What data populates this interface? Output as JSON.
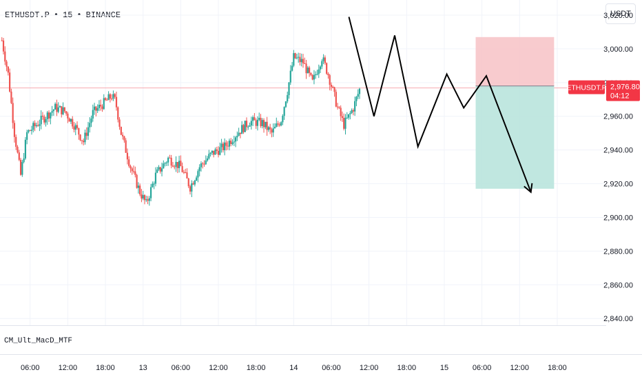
{
  "header": {
    "symbol": "ETHUSDT.P",
    "interval": "15",
    "exchange": "BINANCE",
    "separator": "•",
    "currency_button": "USDT"
  },
  "indicator": {
    "name": "CM_Ult_MacD_MTF"
  },
  "price_tag": {
    "symbol": "ETHUSDT.P",
    "price": "2,976.80",
    "countdown": "04:12",
    "value": 2976.8
  },
  "colors": {
    "up_candle": "#26a69a",
    "down_candle": "#ef5350",
    "price_tag_bg": "#f23645",
    "stop_zone": "#f7c5c9",
    "target_zone": "#b9e4dd",
    "projection_line": "#000000",
    "grid_line": "#f0f3fa"
  },
  "chart_data": {
    "type": "candlestick",
    "y_axis": {
      "ticks": [
        3020,
        3000,
        2980,
        2960,
        2940,
        2920,
        2900,
        2880,
        2860,
        2840
      ],
      "tick_labels": [
        "3,020.00",
        "3,000.00",
        "2,980.00",
        "2,960.00",
        "2,940.00",
        "2,920.00",
        "2,900.00",
        "2,880.00",
        "2,860.00",
        "2,840.00"
      ],
      "range": [
        2836,
        3029
      ]
    },
    "x_axis": {
      "tick_labels": [
        "06:00",
        "12:00",
        "18:00",
        "13",
        "06:00",
        "12:00",
        "18:00",
        "14",
        "06:00",
        "12:00",
        "18:00",
        "15",
        "06:00",
        "12:00",
        "18:00"
      ],
      "tick_hours": [
        6,
        12,
        18,
        24,
        30,
        36,
        42,
        48,
        54,
        60,
        66,
        72,
        78,
        84,
        90
      ],
      "range_hours": [
        1.2,
        97.8
      ]
    },
    "price_path": [
      [
        1.5,
        3005
      ],
      [
        2.5,
        2985
      ],
      [
        3.5,
        2950
      ],
      [
        4.5,
        2925
      ],
      [
        5.5,
        2950
      ],
      [
        7,
        2955
      ],
      [
        8.5,
        2960
      ],
      [
        10,
        2965
      ],
      [
        11.5,
        2963
      ],
      [
        13,
        2955
      ],
      [
        14.5,
        2945
      ],
      [
        16,
        2962
      ],
      [
        17.5,
        2967
      ],
      [
        19,
        2972
      ],
      [
        19.6,
        2969
      ],
      [
        20.5,
        2950
      ],
      [
        22,
        2930
      ],
      [
        23.5,
        2915
      ],
      [
        24.5,
        2908
      ],
      [
        26,
        2925
      ],
      [
        28,
        2935
      ],
      [
        30,
        2930
      ],
      [
        31.5,
        2918
      ],
      [
        33,
        2930
      ],
      [
        35,
        2938
      ],
      [
        37,
        2942
      ],
      [
        39,
        2950
      ],
      [
        41,
        2957
      ],
      [
        43,
        2956
      ],
      [
        44.5,
        2950
      ],
      [
        46,
        2958
      ],
      [
        47,
        2975
      ],
      [
        48,
        2995
      ],
      [
        49.5,
        2992
      ],
      [
        51,
        2980
      ],
      [
        52.5,
        2995
      ],
      [
        53.5,
        2985
      ],
      [
        55,
        2965
      ],
      [
        56,
        2955
      ],
      [
        56.8,
        2960
      ],
      [
        57.5,
        2965
      ],
      [
        58.6,
        2977
      ]
    ],
    "position": {
      "type": "short",
      "entry": 2978,
      "stop": 3007,
      "target": 2917,
      "start_hour": 77,
      "end_hour": 89.5
    },
    "projection": [
      [
        56.8,
        3019
      ],
      [
        60.8,
        2960
      ],
      [
        64.1,
        3008
      ],
      [
        67.8,
        2942
      ],
      [
        72.4,
        2985
      ],
      [
        75.1,
        2965
      ],
      [
        78.7,
        2984
      ],
      [
        85.8,
        2915
      ]
    ]
  }
}
